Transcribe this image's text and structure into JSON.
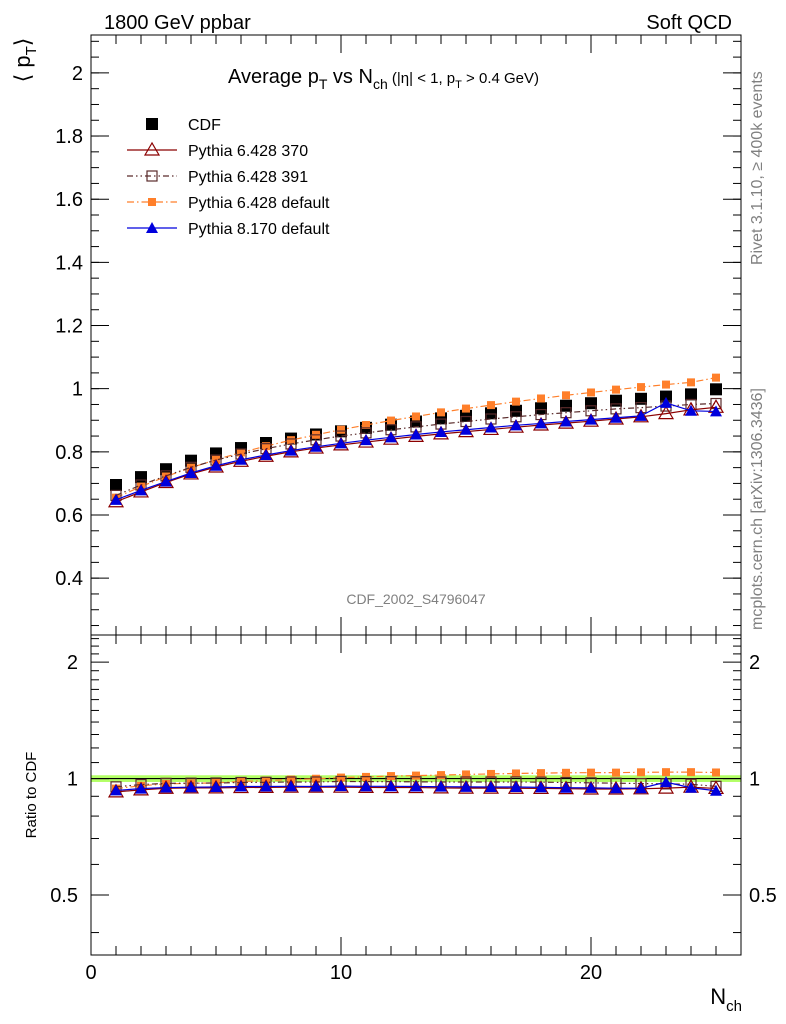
{
  "header": {
    "left": "1800 GeV ppbar",
    "right": "Soft QCD"
  },
  "side_text": {
    "top": "Rivet 3.1.10, ≥ 400k events",
    "bottom": "mcplots.cern.ch [arXiv:1306.3436]"
  },
  "chart_data": [
    {
      "type": "scatter",
      "panel": "main",
      "title": {
        "part1": "Average p",
        "sub1": "T",
        "part2": " vs N",
        "sub2": "ch",
        "part3": " (|η| < 1, p",
        "sub3": "T",
        "part4": " > 0.4 GeV)"
      },
      "ylabel": {
        "main": "⟨ p",
        "sub": "T",
        "close": "⟩"
      },
      "watermark": "CDF_2002_S4796047",
      "xlim": [
        0,
        26
      ],
      "ylim": [
        0.22,
        2.12
      ],
      "y_ticks": [
        0.4,
        0.6,
        0.8,
        1,
        1.2,
        1.4,
        1.6,
        1.8,
        2
      ],
      "y_tick_labels": [
        "0.4",
        "0.6",
        "0.8",
        "1",
        "1.2",
        "1.4",
        "1.6",
        "1.8",
        "2"
      ],
      "legend_position": "top-left",
      "x": [
        1,
        2,
        3,
        4,
        5,
        6,
        7,
        8,
        9,
        10,
        11,
        12,
        13,
        14,
        15,
        16,
        17,
        18,
        19,
        20,
        21,
        22,
        23,
        24,
        25
      ],
      "series": [
        {
          "name": "CDF",
          "color": "#000000",
          "marker": "filled-square",
          "values": [
            0.695,
            0.72,
            0.745,
            0.772,
            0.795,
            0.812,
            0.828,
            0.842,
            0.855,
            0.865,
            0.876,
            0.886,
            0.896,
            0.906,
            0.914,
            0.922,
            0.93,
            0.938,
            0.946,
            0.954,
            0.962,
            0.968,
            0.975,
            0.982,
            0.998
          ]
        },
        {
          "name": "Pythia 6.428 370",
          "color": "#8b0000",
          "marker": "open-triangle",
          "values": [
            0.642,
            0.673,
            0.703,
            0.73,
            0.752,
            0.77,
            0.786,
            0.8,
            0.812,
            0.822,
            0.831,
            0.84,
            0.849,
            0.857,
            0.864,
            0.871,
            0.878,
            0.885,
            0.891,
            0.897,
            0.904,
            0.911,
            0.921,
            0.933,
            0.941
          ]
        },
        {
          "name": "Pythia 6.428 391",
          "color": "#5a2b2b",
          "marker": "open-square",
          "values": [
            0.662,
            0.695,
            0.724,
            0.751,
            0.774,
            0.793,
            0.81,
            0.825,
            0.838,
            0.85,
            0.86,
            0.87,
            0.879,
            0.888,
            0.896,
            0.904,
            0.911,
            0.918,
            0.924,
            0.93,
            0.936,
            0.94,
            0.945,
            0.95,
            0.953
          ]
        },
        {
          "name": "Pythia 6.428 default",
          "color": "#ff7f2a",
          "marker": "filled-square-small",
          "values": [
            0.655,
            0.69,
            0.722,
            0.75,
            0.775,
            0.798,
            0.818,
            0.837,
            0.854,
            0.87,
            0.885,
            0.899,
            0.912,
            0.925,
            0.937,
            0.948,
            0.959,
            0.969,
            0.979,
            0.988,
            0.997,
            1.005,
            1.013,
            1.02,
            1.035
          ]
        },
        {
          "name": "Pythia 8.170 default",
          "color": "#0000dd",
          "marker": "filled-triangle",
          "values": [
            0.648,
            0.678,
            0.706,
            0.733,
            0.756,
            0.775,
            0.79,
            0.804,
            0.816,
            0.827,
            0.837,
            0.846,
            0.855,
            0.863,
            0.87,
            0.877,
            0.884,
            0.89,
            0.896,
            0.902,
            0.908,
            0.914,
            0.955,
            0.93,
            0.928
          ]
        }
      ]
    },
    {
      "type": "scatter",
      "panel": "ratio",
      "ylabel": "Ratio to CDF",
      "xlabel": {
        "main": "N",
        "sub": "ch"
      },
      "xlim": [
        0,
        26
      ],
      "ylim": [
        0.35,
        2.35
      ],
      "y_scale": "log",
      "y_ticks": [
        0.5,
        1,
        2
      ],
      "y_tick_labels": [
        "0.5",
        "1",
        "2"
      ],
      "x_ticks": [
        0,
        10,
        20
      ],
      "x_tick_labels": [
        "0",
        "10",
        "20"
      ],
      "band": {
        "color": "#b3ff66",
        "lower": 0.98,
        "upper": 1.02
      },
      "x": [
        1,
        2,
        3,
        4,
        5,
        6,
        7,
        8,
        9,
        10,
        11,
        12,
        13,
        14,
        15,
        16,
        17,
        18,
        19,
        20,
        21,
        22,
        23,
        24,
        25
      ],
      "series": [
        {
          "name": "Pythia 6.428 370",
          "values": [
            0.924,
            0.935,
            0.944,
            0.946,
            0.946,
            0.948,
            0.949,
            0.95,
            0.95,
            0.95,
            0.949,
            0.948,
            0.948,
            0.946,
            0.945,
            0.945,
            0.944,
            0.943,
            0.942,
            0.94,
            0.94,
            0.941,
            0.945,
            0.95,
            0.943
          ]
        },
        {
          "name": "Pythia 6.428 391",
          "values": [
            0.952,
            0.965,
            0.972,
            0.973,
            0.974,
            0.977,
            0.978,
            0.98,
            0.98,
            0.983,
            0.982,
            0.982,
            0.981,
            0.98,
            0.98,
            0.98,
            0.98,
            0.979,
            0.977,
            0.975,
            0.973,
            0.971,
            0.969,
            0.967,
            0.955
          ]
        },
        {
          "name": "Pythia 6.428 default",
          "values": [
            0.942,
            0.958,
            0.969,
            0.972,
            0.975,
            0.983,
            0.988,
            0.994,
            0.999,
            1.006,
            1.01,
            1.015,
            1.018,
            1.021,
            1.025,
            1.028,
            1.031,
            1.033,
            1.035,
            1.036,
            1.036,
            1.038,
            1.039,
            1.039,
            1.037
          ]
        },
        {
          "name": "Pythia 8.170 default",
          "values": [
            0.932,
            0.942,
            0.948,
            0.95,
            0.951,
            0.954,
            0.954,
            0.955,
            0.954,
            0.956,
            0.955,
            0.955,
            0.954,
            0.953,
            0.952,
            0.951,
            0.951,
            0.949,
            0.947,
            0.946,
            0.944,
            0.944,
            0.979,
            0.947,
            0.93
          ]
        }
      ]
    }
  ]
}
